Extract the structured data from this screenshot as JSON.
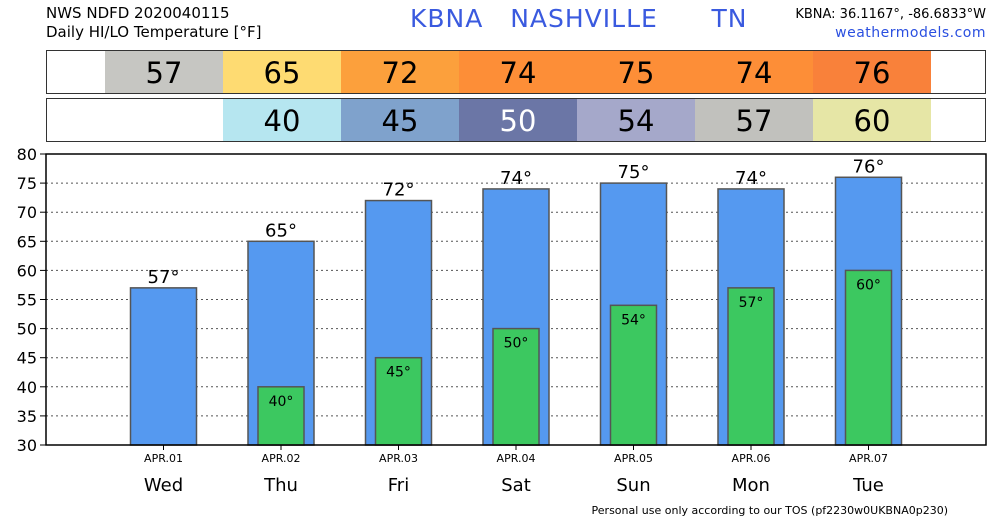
{
  "header": {
    "line1": "NWS NDFD 2020040115",
    "line2": "Daily HI/LO Temperature [°F]",
    "station": "KBNA   NASHVILLE      TN",
    "coords": "KBNA: 36.1167°, -86.6833°W",
    "site": "weathermodels.com"
  },
  "hi_strip": [
    {
      "text": "57",
      "color": "#c6c6c2",
      "textColor": "#000000"
    },
    {
      "text": "65",
      "color": "#fedb72",
      "textColor": "#000000"
    },
    {
      "text": "72",
      "color": "#fca03c",
      "textColor": "#000000"
    },
    {
      "text": "74",
      "color": "#fd8e37",
      "textColor": "#000000"
    },
    {
      "text": "75",
      "color": "#fd8e37",
      "textColor": "#000000"
    },
    {
      "text": "74",
      "color": "#fd8e37",
      "textColor": "#000000"
    },
    {
      "text": "76",
      "color": "#f9813a",
      "textColor": "#000000"
    }
  ],
  "lo_strip": [
    {
      "text": "",
      "color": "#ffffff",
      "textColor": "#000000"
    },
    {
      "text": "40",
      "color": "#b6e6f0",
      "textColor": "#000000"
    },
    {
      "text": "45",
      "color": "#7fa2cc",
      "textColor": "#000000"
    },
    {
      "text": "50",
      "color": "#6b76a6",
      "textColor": "#ffffff"
    },
    {
      "text": "54",
      "color": "#a5a8ca",
      "textColor": "#000000"
    },
    {
      "text": "57",
      "color": "#c1c1bd",
      "textColor": "#000000"
    },
    {
      "text": "60",
      "color": "#e6e6a6",
      "textColor": "#000000"
    }
  ],
  "chart_data": {
    "type": "bar",
    "categories": [
      "APR.01",
      "APR.02",
      "APR.03",
      "APR.04",
      "APR.05",
      "APR.06",
      "APR.07"
    ],
    "days": [
      "Wed",
      "Thu",
      "Fri",
      "Sat",
      "Sun",
      "Mon",
      "Tue"
    ],
    "series": [
      {
        "values": [
          57,
          65,
          72,
          74,
          75,
          74,
          76
        ],
        "labels": [
          "57°",
          "65°",
          "72°",
          "74°",
          "75°",
          "74°",
          "76°"
        ],
        "color": "#5599f0"
      },
      {
        "values": [
          null,
          40,
          45,
          50,
          54,
          57,
          60
        ],
        "labels": [
          "",
          "40°",
          "45°",
          "50°",
          "54°",
          "57°",
          "60°"
        ],
        "color": "#3cc860"
      }
    ],
    "yticks": [
      "30",
      "35",
      "40",
      "45",
      "50",
      "55",
      "60",
      "65",
      "70",
      "75",
      "80"
    ],
    "ylim": [
      30,
      80
    ],
    "grid": true
  },
  "footer": "Personal use only according to our TOS (pf2230w0UKBNA0p230)"
}
